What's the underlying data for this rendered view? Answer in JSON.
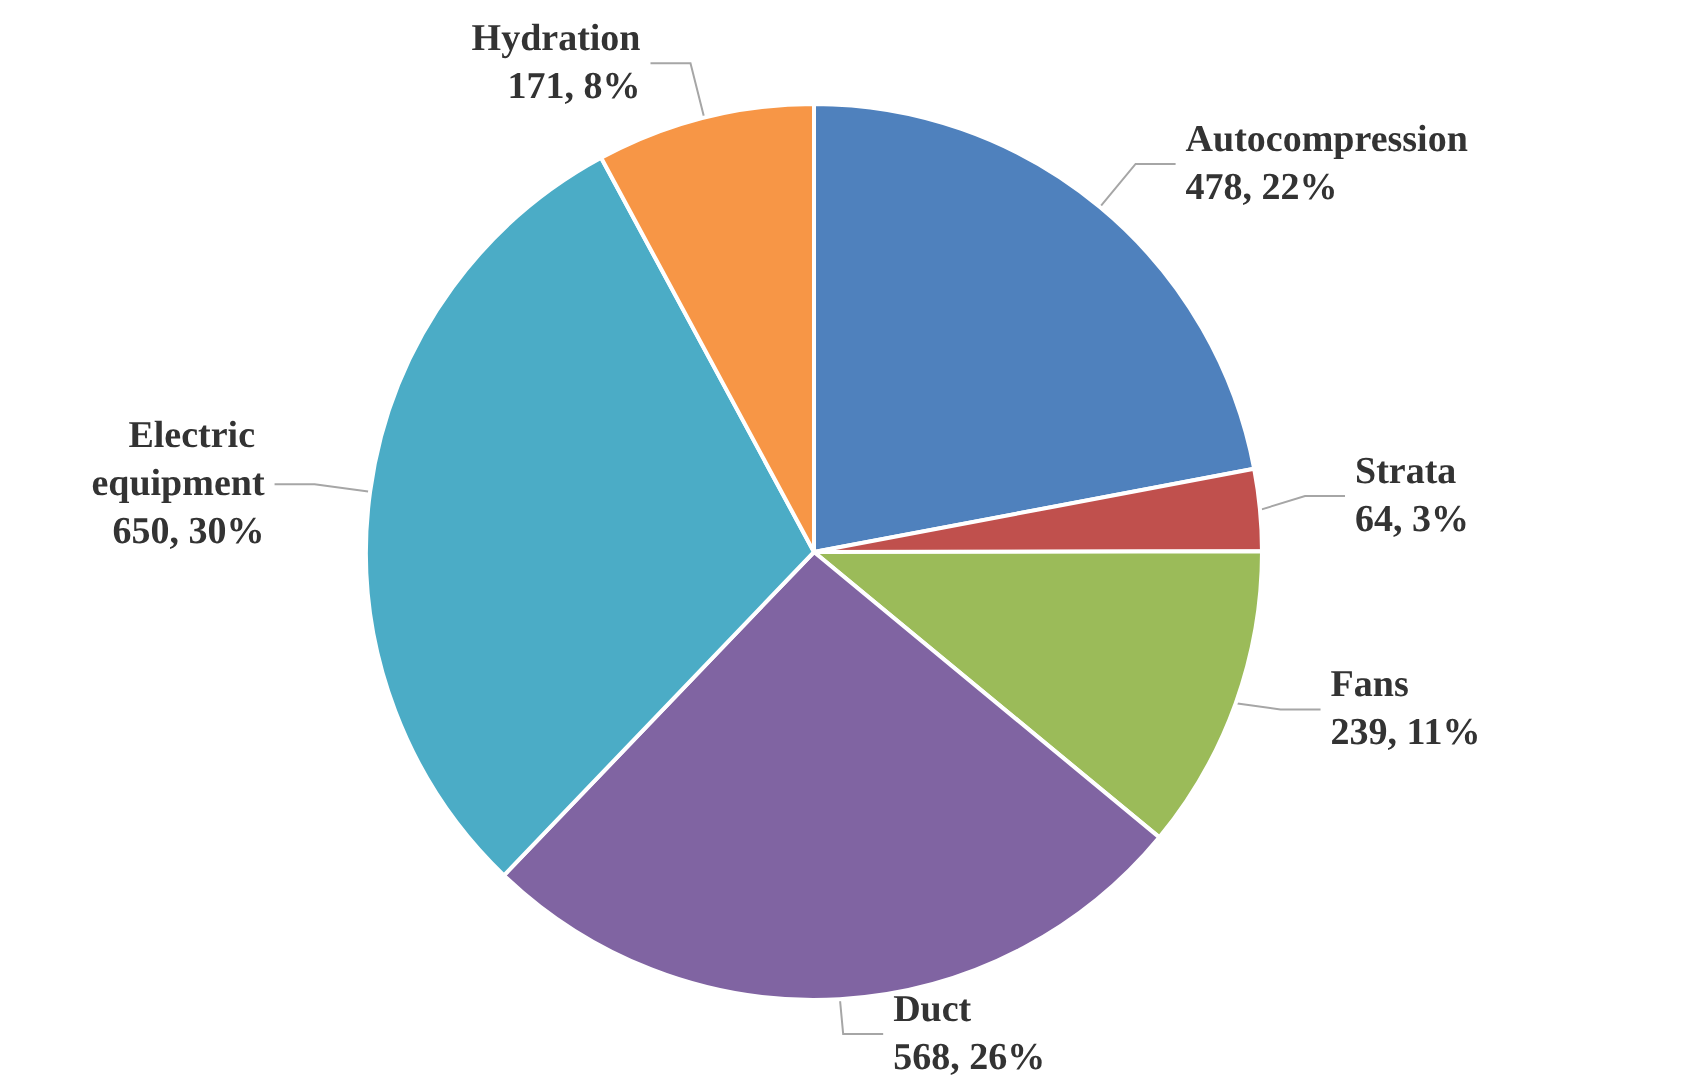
{
  "chart_data": {
    "type": "pie",
    "categories": [
      "Autocompression",
      "Strata",
      "Fans",
      "Duct",
      "Electric equipment",
      "Hydration"
    ],
    "values": [
      478,
      64,
      239,
      568,
      650,
      171
    ],
    "value_labels": [
      "478, 22%",
      "64, 3%",
      "239, 11%",
      "568, 26%",
      "650, 30%",
      "171, 8%"
    ],
    "colors": [
      "#4f81bd",
      "#c0504d",
      "#9bbb59",
      "#8064a2",
      "#4bacc6",
      "#f79646"
    ],
    "legend": false
  }
}
